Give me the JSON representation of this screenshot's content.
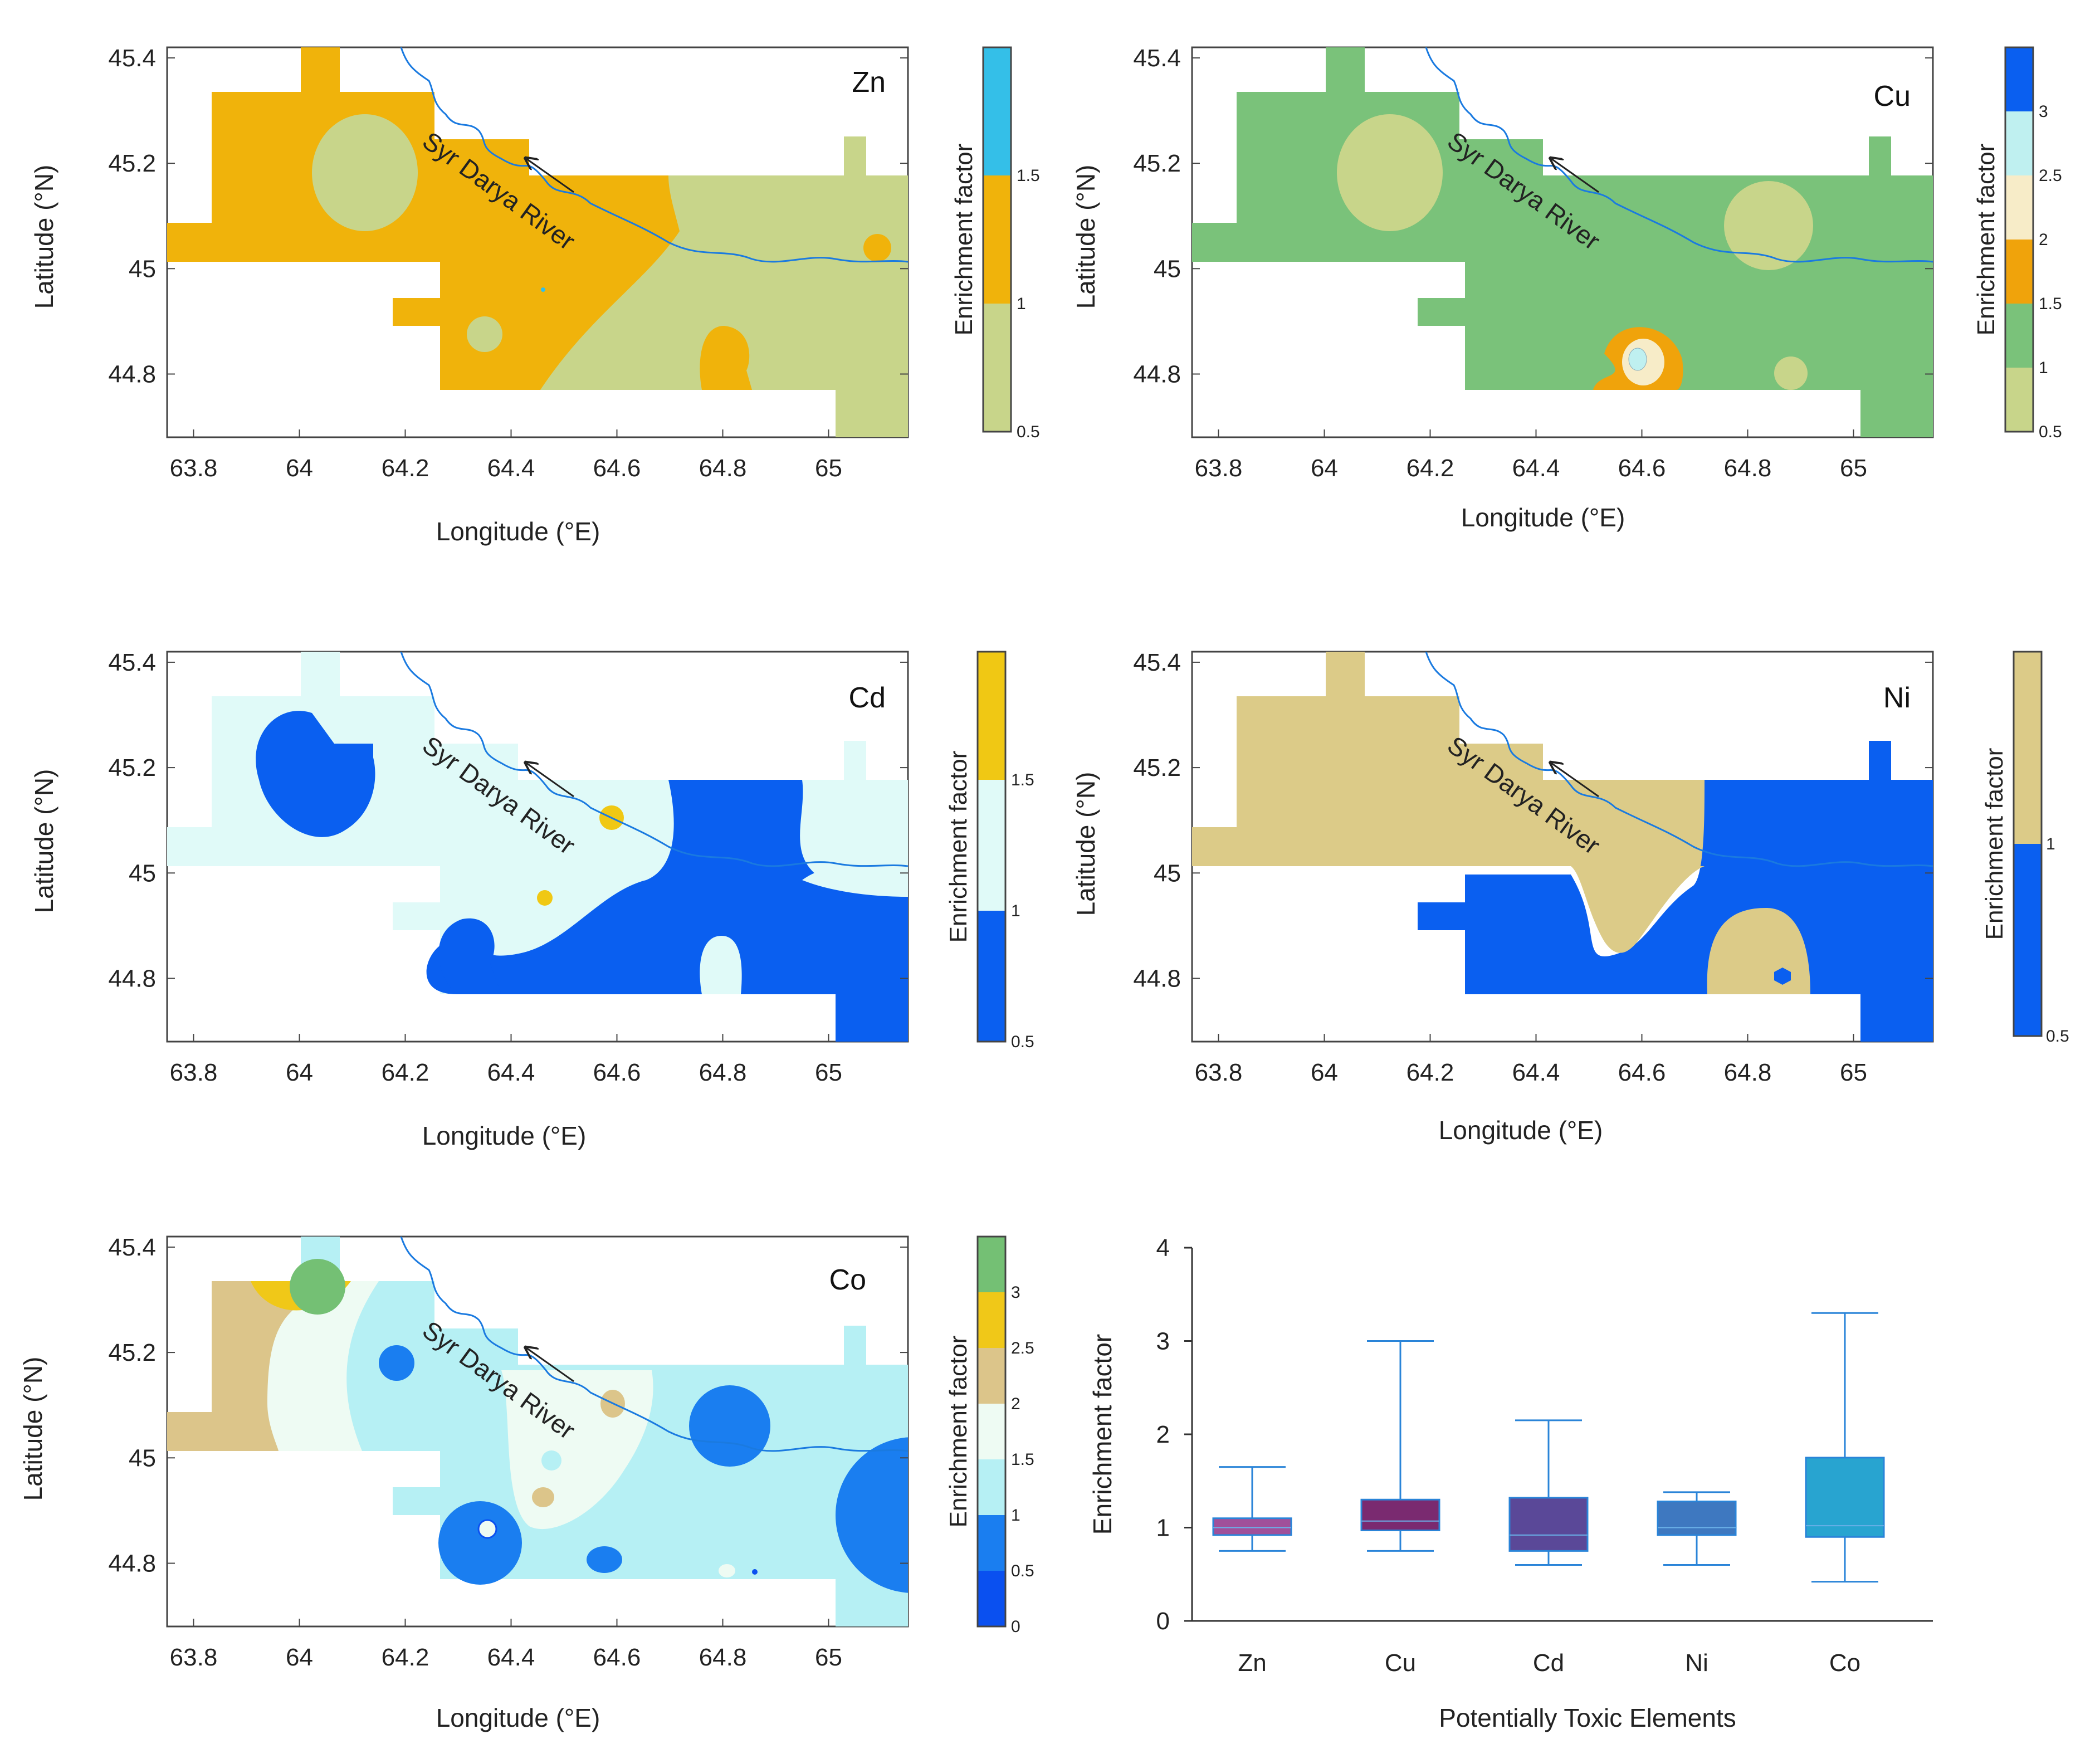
{
  "figure": {
    "colors": {
      "zn_low": "#c8d58a",
      "zn_mid": "#f0b30b",
      "zn_high": "#34bfe8",
      "cu_low": "#c8d58a",
      "cu_1": "#7ac27a",
      "cu_15": "#f0a30b",
      "cu_2": "#f7ecc8",
      "cu_25": "#bff0f0",
      "cu_3": "#0a5ff0",
      "cd_low": "#0a5ff0",
      "cd_mid": "#e0faf8",
      "cd_high": "#f0c814",
      "ni_low": "#0a5ff0",
      "ni_high": "#dccb88",
      "co_0": "#0a50f0",
      "co_05": "#1a7ef0",
      "co_1": "#b6f0f4",
      "co_15": "#eefbf3",
      "co_2": "#dcc58a",
      "co_25": "#f0c818",
      "co_3": "#74c074",
      "river": "#1a7ae0",
      "box_zn": "#a0509a",
      "box_cu": "#7a2a70",
      "box_cd": "#5a4898",
      "box_ni": "#3e78c0",
      "box_co": "#28a4d0",
      "whisker": "#2a84d8"
    }
  },
  "chart_data": [
    {
      "type": "heatmap",
      "element": "Zn",
      "river_label": "Syr Darya River",
      "xlabel": "Longitude (°E)",
      "ylabel": "Latitude (°N)",
      "colorbar_label": "Enrichment factor",
      "xticks": [
        "63.8",
        "64",
        "64.2",
        "64.4",
        "64.6",
        "64.8",
        "65"
      ],
      "yticks": [
        "45.4",
        "45.2",
        "45",
        "44.8"
      ],
      "colorbar_ticks": [
        "0.5",
        "1",
        "1.5"
      ],
      "xlim": [
        63.75,
        65.15
      ],
      "ylim": [
        44.68,
        45.42
      ]
    },
    {
      "type": "heatmap",
      "element": "Cu",
      "river_label": "Syr Darya River",
      "xlabel": "Longitude (°E)",
      "ylabel": "Latitude (°N)",
      "colorbar_label": "Enrichment factor",
      "xticks": [
        "63.8",
        "64",
        "64.2",
        "64.4",
        "64.6",
        "64.8",
        "65"
      ],
      "yticks": [
        "45.4",
        "45.2",
        "45",
        "44.8"
      ],
      "colorbar_ticks": [
        "0.5",
        "1",
        "1.5",
        "2",
        "2.5",
        "3"
      ],
      "xlim": [
        63.75,
        65.15
      ],
      "ylim": [
        44.68,
        45.42
      ]
    },
    {
      "type": "heatmap",
      "element": "Cd",
      "river_label": "Syr Darya River",
      "xlabel": "Longitude (°E)",
      "ylabel": "Latitude (°N)",
      "colorbar_label": "Enrichment factor",
      "xticks": [
        "63.8",
        "64",
        "64.2",
        "64.4",
        "64.6",
        "64.8",
        "65"
      ],
      "yticks": [
        "45.4",
        "45.2",
        "45",
        "44.8"
      ],
      "colorbar_ticks": [
        "0.5",
        "1",
        "1.5"
      ],
      "xlim": [
        63.75,
        65.15
      ],
      "ylim": [
        44.68,
        45.42
      ]
    },
    {
      "type": "heatmap",
      "element": "Ni",
      "river_label": "Syr Darya River",
      "xlabel": "Longitude (°E)",
      "ylabel": "Latitude (°N)",
      "colorbar_label": "Enrichment factor",
      "xticks": [
        "63.8",
        "64",
        "64.2",
        "64.4",
        "64.6",
        "64.8",
        "65"
      ],
      "yticks": [
        "45.4",
        "45.2",
        "45",
        "44.8"
      ],
      "colorbar_ticks": [
        "0.5",
        "1"
      ],
      "xlim": [
        63.75,
        65.15
      ],
      "ylim": [
        44.68,
        45.42
      ]
    },
    {
      "type": "heatmap",
      "element": "Co",
      "river_label": "Syr Darya River",
      "xlabel": "Longitude (°E)",
      "ylabel": "Latitude (°N)",
      "colorbar_label": "Enrichment factor",
      "xticks": [
        "63.8",
        "64",
        "64.2",
        "64.4",
        "64.6",
        "64.8",
        "65"
      ],
      "yticks": [
        "45.4",
        "45.2",
        "45",
        "44.8"
      ],
      "colorbar_ticks": [
        "0",
        "0.5",
        "1",
        "1.5",
        "2",
        "2.5",
        "3"
      ],
      "xlim": [
        63.75,
        65.15
      ],
      "ylim": [
        44.68,
        45.42
      ]
    },
    {
      "type": "box",
      "categories": [
        "Zn",
        "Cu",
        "Cd",
        "Ni",
        "Co"
      ],
      "xlabel": "Potentially Toxic Elements",
      "ylabel": "Enrichment factor",
      "ylim": [
        0,
        4
      ],
      "yticks": [
        "0",
        "1",
        "2",
        "3",
        "4"
      ],
      "boxes": [
        {
          "name": "Zn",
          "min": 0.75,
          "q1": 0.92,
          "median": 1.0,
          "q3": 1.1,
          "max": 1.65
        },
        {
          "name": "Cu",
          "min": 0.75,
          "q1": 0.97,
          "median": 1.07,
          "q3": 1.3,
          "max": 3.0
        },
        {
          "name": "Cd",
          "min": 0.6,
          "q1": 0.75,
          "median": 0.92,
          "q3": 1.32,
          "max": 2.15
        },
        {
          "name": "Ni",
          "min": 0.6,
          "q1": 0.92,
          "median": 1.0,
          "q3": 1.28,
          "max": 1.38
        },
        {
          "name": "Co",
          "min": 0.42,
          "q1": 0.9,
          "median": 1.02,
          "q3": 1.75,
          "max": 3.3
        }
      ]
    }
  ]
}
